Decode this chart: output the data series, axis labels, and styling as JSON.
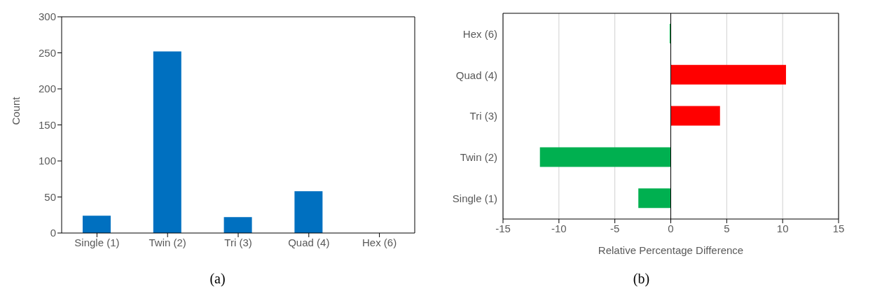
{
  "chart_data": [
    {
      "type": "bar",
      "title": "(a)",
      "ylabel": "Count",
      "categories": [
        "Single (1)",
        "Twin (2)",
        "Tri (3)",
        "Quad (4)",
        "Hex (6)"
      ],
      "values": [
        24,
        252,
        22,
        58,
        0
      ],
      "color": "#0070c0",
      "ylim": [
        0,
        300
      ],
      "yticks": [
        0,
        50,
        100,
        150,
        200,
        250,
        300
      ],
      "grid": false
    },
    {
      "type": "bar",
      "title": "(b)",
      "orientation": "horizontal",
      "xlabel": "Relative Percentage Difference",
      "categories": [
        "Hex (6)",
        "Quad (4)",
        "Tri (3)",
        "Twin (2)",
        "Single (1)"
      ],
      "values": [
        -0.1,
        10.3,
        4.4,
        -11.7,
        -2.9
      ],
      "colors": [
        "#00b050",
        "#ff0000",
        "#ff0000",
        "#00b050",
        "#00b050"
      ],
      "xlim": [
        -15,
        15
      ],
      "xticks": [
        -15,
        -10,
        -5,
        0,
        5,
        10,
        15
      ],
      "grid": "x"
    }
  ]
}
